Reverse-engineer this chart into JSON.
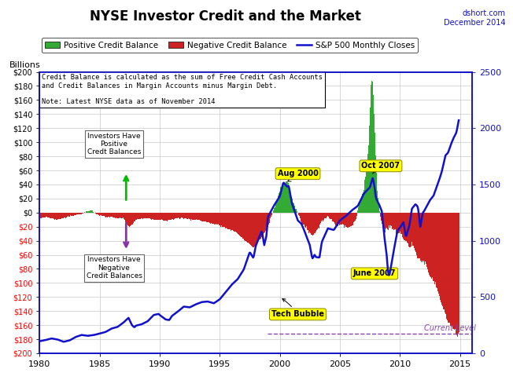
{
  "title": "NYSE Investor Credit and the Market",
  "subtitle_right": "dshort.com\nDecember 2014",
  "ylabel_left": "Billions",
  "xlim": [
    1980,
    2016
  ],
  "ylim_left": [
    -200,
    200
  ],
  "ylim_right": [
    0,
    2500
  ],
  "background_color": "#ffffff",
  "grid_color": "#c8c8c8",
  "positive_color": "#33aa33",
  "negative_color": "#cc2222",
  "sp500_color": "#1111cc",
  "current_level_color": "#8844aa",
  "current_level_value": -172,
  "legend_items": [
    {
      "label": "Positive Credit Balance",
      "color": "#33aa33"
    },
    {
      "label": "Negative Credit Balance",
      "color": "#cc2222"
    },
    {
      "label": "S&P 500 Monthly Closes",
      "color": "#1111cc"
    }
  ],
  "infobox_text": "Credit Balance is calculated as the sum of Free Credit Cash Accounts\nand Credit Balances in Margin Accounts minus Margin Debt.\n\nNote: Latest NYSE data as of November 2014",
  "yticks_left": [
    200,
    180,
    160,
    140,
    120,
    100,
    80,
    60,
    40,
    20,
    0,
    -20,
    -40,
    -60,
    -80,
    -100,
    -120,
    -140,
    -160,
    -180,
    -200
  ],
  "ytick_labels_left": [
    "$200",
    "$180",
    "$160",
    "$140",
    "$120",
    "$100",
    "$80",
    "$60",
    "$40",
    "$20",
    "$0",
    "$20",
    "$40",
    "$60",
    "$80",
    "$100",
    "$120",
    "$140",
    "$160",
    "$180",
    "$200"
  ],
  "ytick_colors_left": [
    "black",
    "black",
    "black",
    "black",
    "black",
    "black",
    "black",
    "black",
    "black",
    "black",
    "black",
    "red",
    "red",
    "red",
    "red",
    "red",
    "red",
    "red",
    "red",
    "red",
    "red"
  ],
  "yticks_right": [
    0,
    500,
    1000,
    1500,
    2000,
    2500
  ],
  "xticks": [
    1980,
    1985,
    1990,
    1995,
    2000,
    2005,
    2010,
    2015
  ],
  "sp500_keypoints": [
    [
      1980.0,
      107
    ],
    [
      1980.5,
      118
    ],
    [
      1981.0,
      132
    ],
    [
      1981.5,
      122
    ],
    [
      1982.0,
      102
    ],
    [
      1982.5,
      115
    ],
    [
      1983.0,
      145
    ],
    [
      1983.5,
      163
    ],
    [
      1984.0,
      155
    ],
    [
      1984.5,
      162
    ],
    [
      1985.0,
      175
    ],
    [
      1985.5,
      190
    ],
    [
      1986.0,
      220
    ],
    [
      1986.5,
      235
    ],
    [
      1987.0,
      275
    ],
    [
      1987.4,
      315
    ],
    [
      1987.7,
      248
    ],
    [
      1987.9,
      230
    ],
    [
      1988.0,
      245
    ],
    [
      1988.5,
      258
    ],
    [
      1989.0,
      285
    ],
    [
      1989.5,
      340
    ],
    [
      1989.9,
      350
    ],
    [
      1990.0,
      340
    ],
    [
      1990.5,
      300
    ],
    [
      1990.8,
      295
    ],
    [
      1991.0,
      330
    ],
    [
      1991.5,
      370
    ],
    [
      1992.0,
      415
    ],
    [
      1992.5,
      408
    ],
    [
      1993.0,
      435
    ],
    [
      1993.5,
      455
    ],
    [
      1994.0,
      460
    ],
    [
      1994.5,
      444
    ],
    [
      1995.0,
      480
    ],
    [
      1995.5,
      545
    ],
    [
      1996.0,
      610
    ],
    [
      1996.5,
      660
    ],
    [
      1997.0,
      745
    ],
    [
      1997.5,
      900
    ],
    [
      1997.8,
      845
    ],
    [
      1998.0,
      955
    ],
    [
      1998.5,
      1090
    ],
    [
      1998.7,
      960
    ],
    [
      1998.9,
      1050
    ],
    [
      1999.0,
      1210
    ],
    [
      1999.5,
      1310
    ],
    [
      2000.0,
      1395
    ],
    [
      2000.3,
      1520
    ],
    [
      2000.6,
      1480
    ],
    [
      2000.75,
      1485
    ],
    [
      2001.0,
      1335
    ],
    [
      2001.5,
      1180
    ],
    [
      2001.8,
      1150
    ],
    [
      2002.0,
      1100
    ],
    [
      2002.5,
      960
    ],
    [
      2002.7,
      840
    ],
    [
      2002.9,
      875
    ],
    [
      2003.0,
      855
    ],
    [
      2003.3,
      850
    ],
    [
      2003.5,
      990
    ],
    [
      2004.0,
      1110
    ],
    [
      2004.5,
      1095
    ],
    [
      2005.0,
      1180
    ],
    [
      2005.5,
      1220
    ],
    [
      2006.0,
      1270
    ],
    [
      2006.5,
      1310
    ],
    [
      2007.0,
      1418
    ],
    [
      2007.5,
      1475
    ],
    [
      2007.7,
      1548
    ],
    [
      2007.75,
      1560
    ],
    [
      2007.9,
      1468
    ],
    [
      2008.0,
      1380
    ],
    [
      2008.3,
      1315
    ],
    [
      2008.5,
      1260
    ],
    [
      2008.7,
      1040
    ],
    [
      2008.9,
      870
    ],
    [
      2009.0,
      735
    ],
    [
      2009.1,
      680
    ],
    [
      2009.2,
      735
    ],
    [
      2009.5,
      920
    ],
    [
      2009.8,
      1090
    ],
    [
      2010.0,
      1115
    ],
    [
      2010.3,
      1165
    ],
    [
      2010.5,
      1030
    ],
    [
      2010.6,
      1070
    ],
    [
      2010.8,
      1140
    ],
    [
      2011.0,
      1285
    ],
    [
      2011.3,
      1325
    ],
    [
      2011.5,
      1300
    ],
    [
      2011.7,
      1120
    ],
    [
      2011.9,
      1250
    ],
    [
      2012.0,
      1260
    ],
    [
      2012.5,
      1360
    ],
    [
      2012.8,
      1400
    ],
    [
      2013.0,
      1460
    ],
    [
      2013.3,
      1550
    ],
    [
      2013.5,
      1620
    ],
    [
      2013.8,
      1760
    ],
    [
      2014.0,
      1780
    ],
    [
      2014.3,
      1870
    ],
    [
      2014.5,
      1920
    ],
    [
      2014.7,
      1960
    ],
    [
      2014.9,
      2070
    ]
  ],
  "credit_keypoints": [
    [
      1980.0,
      -8
    ],
    [
      1980.5,
      -6
    ],
    [
      1981.0,
      -8
    ],
    [
      1981.5,
      -10
    ],
    [
      1982.0,
      -8
    ],
    [
      1982.5,
      -5
    ],
    [
      1983.0,
      -4
    ],
    [
      1983.5,
      -2
    ],
    [
      1984.0,
      2
    ],
    [
      1984.3,
      3
    ],
    [
      1984.5,
      1
    ],
    [
      1984.7,
      -2
    ],
    [
      1985.0,
      -4
    ],
    [
      1985.5,
      -6
    ],
    [
      1986.0,
      -6
    ],
    [
      1986.5,
      -8
    ],
    [
      1987.0,
      -8
    ],
    [
      1987.3,
      -18
    ],
    [
      1987.5,
      -20
    ],
    [
      1987.7,
      -18
    ],
    [
      1988.0,
      -10
    ],
    [
      1988.5,
      -8
    ],
    [
      1989.0,
      -8
    ],
    [
      1989.5,
      -10
    ],
    [
      1990.0,
      -10
    ],
    [
      1990.5,
      -12
    ],
    [
      1991.0,
      -10
    ],
    [
      1991.5,
      -8
    ],
    [
      1992.0,
      -8
    ],
    [
      1992.5,
      -10
    ],
    [
      1993.0,
      -10
    ],
    [
      1993.5,
      -12
    ],
    [
      1994.0,
      -14
    ],
    [
      1994.5,
      -16
    ],
    [
      1995.0,
      -18
    ],
    [
      1995.5,
      -22
    ],
    [
      1996.0,
      -25
    ],
    [
      1996.5,
      -30
    ],
    [
      1997.0,
      -38
    ],
    [
      1997.5,
      -45
    ],
    [
      1997.8,
      -50
    ],
    [
      1998.0,
      -45
    ],
    [
      1998.5,
      -35
    ],
    [
      1999.0,
      -20
    ],
    [
      1999.3,
      -5
    ],
    [
      1999.5,
      5
    ],
    [
      1999.8,
      20
    ],
    [
      2000.0,
      32
    ],
    [
      2000.3,
      40
    ],
    [
      2000.5,
      43
    ],
    [
      2000.6,
      45
    ],
    [
      2000.67,
      44
    ],
    [
      2000.75,
      38
    ],
    [
      2001.0,
      20
    ],
    [
      2001.3,
      8
    ],
    [
      2001.5,
      -2
    ],
    [
      2001.8,
      -12
    ],
    [
      2002.0,
      -18
    ],
    [
      2002.3,
      -22
    ],
    [
      2002.5,
      -28
    ],
    [
      2002.7,
      -32
    ],
    [
      2003.0,
      -28
    ],
    [
      2003.3,
      -20
    ],
    [
      2003.5,
      -12
    ],
    [
      2003.8,
      -8
    ],
    [
      2004.0,
      -6
    ],
    [
      2004.3,
      -10
    ],
    [
      2004.5,
      -14
    ],
    [
      2004.8,
      -18
    ],
    [
      2005.0,
      -16
    ],
    [
      2005.3,
      -18
    ],
    [
      2005.5,
      -20
    ],
    [
      2005.8,
      -22
    ],
    [
      2006.0,
      -20
    ],
    [
      2006.3,
      -10
    ],
    [
      2006.5,
      2
    ],
    [
      2006.7,
      15
    ],
    [
      2007.0,
      35
    ],
    [
      2007.2,
      55
    ],
    [
      2007.4,
      100
    ],
    [
      2007.5,
      150
    ],
    [
      2007.6,
      180
    ],
    [
      2007.7,
      188
    ],
    [
      2007.75,
      186
    ],
    [
      2007.8,
      165
    ],
    [
      2007.9,
      120
    ],
    [
      2008.0,
      60
    ],
    [
      2008.2,
      20
    ],
    [
      2008.3,
      5
    ],
    [
      2008.4,
      -8
    ],
    [
      2008.5,
      -18
    ],
    [
      2008.7,
      -25
    ],
    [
      2009.0,
      -22
    ],
    [
      2009.3,
      -20
    ],
    [
      2009.5,
      -25
    ],
    [
      2009.8,
      -30
    ],
    [
      2010.0,
      -28
    ],
    [
      2010.3,
      -35
    ],
    [
      2010.5,
      -40
    ],
    [
      2010.8,
      -48
    ],
    [
      2011.0,
      -45
    ],
    [
      2011.3,
      -55
    ],
    [
      2011.5,
      -65
    ],
    [
      2011.8,
      -70
    ],
    [
      2012.0,
      -68
    ],
    [
      2012.3,
      -80
    ],
    [
      2012.5,
      -90
    ],
    [
      2012.8,
      -95
    ],
    [
      2013.0,
      -100
    ],
    [
      2013.3,
      -120
    ],
    [
      2013.5,
      -130
    ],
    [
      2013.8,
      -145
    ],
    [
      2014.0,
      -155
    ],
    [
      2014.3,
      -162
    ],
    [
      2014.6,
      -168
    ],
    [
      2014.75,
      -178
    ],
    [
      2014.9,
      -172
    ]
  ]
}
